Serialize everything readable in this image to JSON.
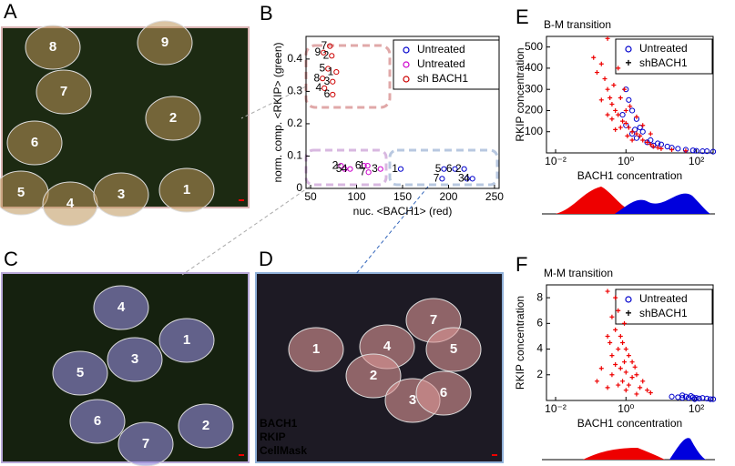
{
  "images": [
    {
      "panel": "A",
      "cells": [
        "8",
        "9",
        "7",
        "2",
        "6",
        "5",
        "4",
        "3",
        "1"
      ]
    },
    {
      "panel": "C",
      "cells": [
        "4",
        "1",
        "3",
        "5",
        "6",
        "2",
        "7"
      ]
    },
    {
      "panel": "D",
      "cells": [
        "7",
        "1",
        "4",
        "5",
        "2",
        "3",
        "6"
      ],
      "legend": [
        "BACH1",
        "RKIP",
        "CellMask"
      ]
    }
  ],
  "chart_data": [
    {
      "type": "scatter",
      "panel": "B",
      "xlabel": "nuc. <BACH1> (red)",
      "ylabel": "norm. comp. <RKIP> (green)",
      "xlim": [
        45,
        255
      ],
      "ylim": [
        0,
        0.47
      ],
      "xticks": [
        50,
        100,
        150,
        200,
        250
      ],
      "yticks": [
        0,
        0.1,
        0.2,
        0.3,
        0.4
      ],
      "log_x": false,
      "legend": "upper right",
      "series": [
        {
          "name": "Untreated",
          "color": "#0000cc",
          "marker": "o",
          "point_labels": [
            "1",
            "5",
            "7",
            "6",
            "2",
            "3",
            "4"
          ],
          "x": [
            148,
            195,
            193,
            207,
            217,
            220,
            226
          ],
          "values": [
            0.06,
            0.06,
            0.03,
            0.06,
            0.06,
            0.03,
            0.03
          ]
        },
        {
          "name": "Untreated",
          "color": "#cc00cc",
          "marker": "o",
          "point_labels": [
            "2",
            "5",
            "4",
            "6",
            "1",
            "7",
            "3"
          ],
          "x": [
            83,
            87,
            93,
            108,
            112,
            113,
            126
          ],
          "values": [
            0.07,
            0.06,
            0.06,
            0.07,
            0.07,
            0.05,
            0.06
          ]
        },
        {
          "name": "sh BACH1",
          "color": "#cc0000",
          "marker": "o",
          "point_labels": [
            "7",
            "9",
            "2",
            "5",
            "1",
            "8",
            "3",
            "4",
            "6"
          ],
          "x": [
            71,
            64,
            73,
            69,
            78,
            63,
            74,
            65,
            74
          ],
          "values": [
            0.44,
            0.42,
            0.41,
            0.37,
            0.36,
            0.34,
            0.33,
            0.31,
            0.29
          ]
        }
      ]
    },
    {
      "type": "scatter",
      "panel": "E",
      "title": "B-M transition",
      "xlabel": "BACH1 concentration",
      "ylabel": "RKIP concentration",
      "xlim": [
        0.0055,
        300
      ],
      "ylim": [
        0,
        550
      ],
      "log_x": true,
      "legend": "upper right",
      "xticks": [
        {
          "value": 0.01,
          "label": "10⁻²"
        },
        {
          "value": 1,
          "label": "10⁰"
        },
        {
          "value": 100,
          "label": "10²"
        }
      ],
      "yticks": [
        100,
        200,
        300,
        400,
        500
      ],
      "series": [
        {
          "name": "Untreated",
          "color": "#0000cc",
          "marker": "o",
          "x": [
            0.8,
            1,
            1.2,
            1.5,
            2,
            2.5,
            3,
            1,
            1.5,
            5,
            8,
            10,
            15,
            20,
            30,
            50,
            80,
            100,
            150,
            200,
            300,
            2,
            4,
            1.8,
            6
          ],
          "values": [
            180,
            300,
            250,
            200,
            160,
            120,
            100,
            130,
            90,
            60,
            45,
            40,
            30,
            25,
            20,
            15,
            12,
            10,
            8,
            8,
            6,
            70,
            50,
            110,
            35
          ]
        },
        {
          "name": "shBACH1",
          "color": "#ee0000",
          "marker": "+",
          "x": [
            0.3,
            0.2,
            0.25,
            0.3,
            0.35,
            0.4,
            0.5,
            0.45,
            0.6,
            0.7,
            0.8,
            1,
            1.2,
            1,
            1.5,
            2,
            2.5,
            3,
            4,
            5,
            6,
            8,
            10,
            0.15,
            0.12,
            0.6,
            0.9,
            1.3,
            2,
            3,
            5,
            0.4,
            0.7,
            1.5,
            0.2,
            0.3,
            20,
            50,
            0.5,
            1.1
          ],
          "values": [
            540,
            420,
            350,
            300,
            260,
            230,
            200,
            320,
            180,
            260,
            150,
            140,
            120,
            200,
            100,
            90,
            80,
            60,
            50,
            40,
            30,
            25,
            20,
            380,
            450,
            400,
            300,
            220,
            170,
            130,
            90,
            160,
            120,
            60,
            250,
            180,
            15,
            10,
            110,
            80
          ]
        }
      ]
    },
    {
      "type": "scatter",
      "panel": "F",
      "title": "M-M transition",
      "xlabel": "BACH1 concentration",
      "ylabel": "RKIP concentration",
      "xlim": [
        0.0055,
        300
      ],
      "ylim": [
        0,
        9
      ],
      "log_x": true,
      "legend": "upper right",
      "xticks": [
        {
          "value": 0.01,
          "label": "10⁻²"
        },
        {
          "value": 1,
          "label": "10⁰"
        },
        {
          "value": 100,
          "label": "10²"
        }
      ],
      "yticks": [
        2,
        4,
        6,
        8
      ],
      "series": [
        {
          "name": "Untreated",
          "color": "#0000cc",
          "marker": "o",
          "x": [
            20,
            30,
            40,
            50,
            60,
            80,
            100,
            120,
            150,
            200,
            250,
            300,
            70,
            90,
            40
          ],
          "values": [
            0.3,
            0.25,
            0.2,
            0.3,
            0.2,
            0.25,
            0.2,
            0.15,
            0.2,
            0.15,
            0.1,
            0.1,
            0.35,
            0.1,
            0.4
          ]
        },
        {
          "name": "shBACH1",
          "color": "#ee0000",
          "marker": "+",
          "x": [
            0.3,
            0.5,
            0.4,
            0.6,
            0.5,
            0.3,
            0.7,
            0.8,
            1,
            0.6,
            0.4,
            1.2,
            0.9,
            1.5,
            0.5,
            0.7,
            1,
            2,
            0.4,
            1.5,
            3,
            0.8,
            1.2,
            2.5,
            0.6,
            4,
            1,
            5,
            0.3,
            2,
            0.2,
            0.15,
            1.8,
            0.9,
            0.35
          ],
          "values": [
            8.5,
            8,
            6.5,
            7,
            5.5,
            5,
            5,
            4.5,
            4,
            4,
            3.5,
            3.5,
            3,
            3,
            2.8,
            2.5,
            2.2,
            2,
            2,
            1.8,
            1.5,
            1.5,
            1.2,
            1,
            1.2,
            0.8,
            0.8,
            0.6,
            1,
            0.5,
            2.5,
            1.5,
            2.6,
            6,
            4.5
          ]
        }
      ]
    }
  ]
}
